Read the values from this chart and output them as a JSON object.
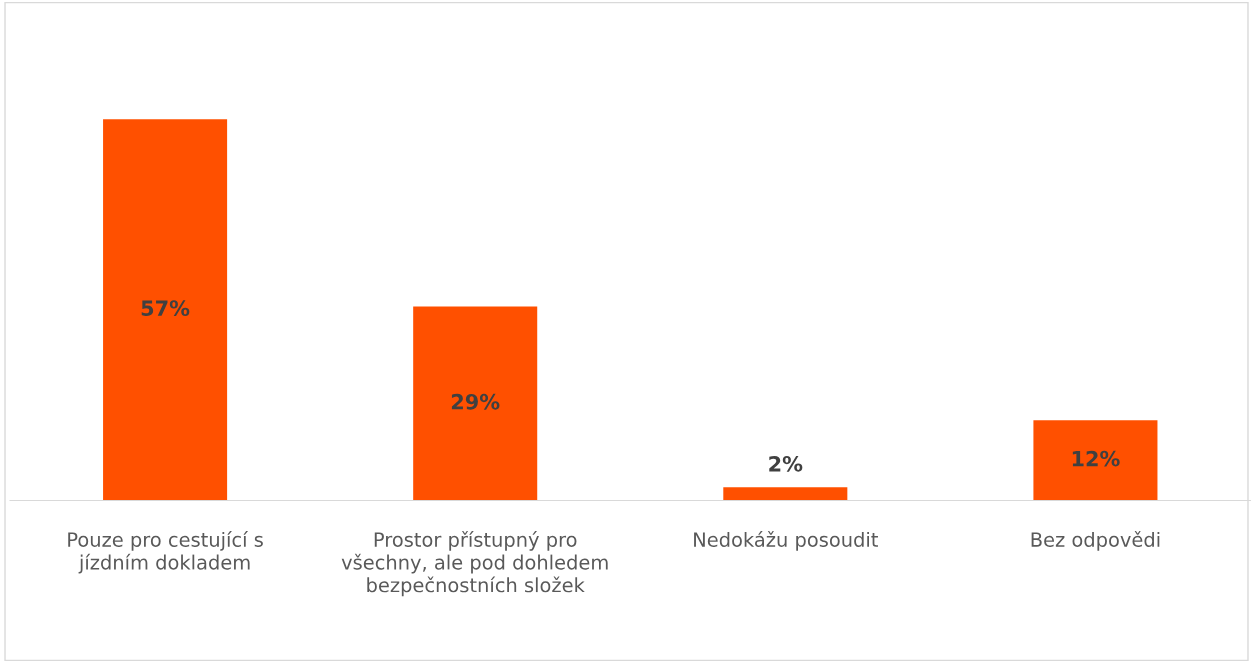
{
  "chart_data": {
    "type": "bar",
    "categories": [
      "Pouze pro cestující s\njízdním dokladem",
      "Prostor přístupný pro\nvšechny, ale pod dohledem\nbezpečnostních složek",
      "Nedokážu posoudit",
      "Bez odpovědi"
    ],
    "values": [
      57,
      29,
      2,
      12
    ],
    "value_labels": [
      "57%",
      "29%",
      "2%",
      "12%"
    ],
    "color": "#ff5000"
  }
}
